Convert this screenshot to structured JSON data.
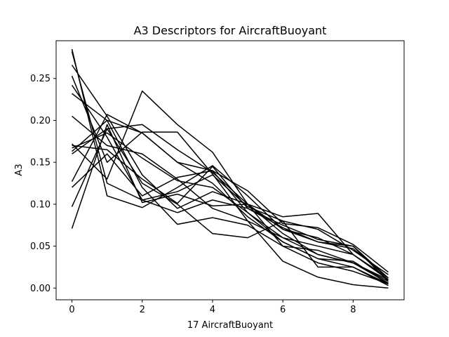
{
  "chart_data": {
    "type": "line",
    "title": "A3 Descriptors for AircraftBuoyant",
    "xlabel": "17 AircraftBuoyant",
    "ylabel": "A3",
    "xlim": [
      -0.45,
      9.45
    ],
    "ylim": [
      -0.014,
      0.295
    ],
    "xticks": [
      0,
      2,
      4,
      6,
      8
    ],
    "yticks": [
      0.0,
      0.05,
      0.1,
      0.15,
      0.2,
      0.25
    ],
    "ytick_labels": [
      "0.00",
      "0.05",
      "0.10",
      "0.15",
      "0.20",
      "0.25"
    ],
    "grid": false,
    "line_color": "#000000",
    "x": [
      0,
      1,
      2,
      3,
      4,
      5,
      6,
      7,
      8,
      9
    ],
    "series": [
      {
        "values": [
          0.285,
          0.11,
          0.096,
          0.12,
          0.146,
          0.11,
          0.07,
          0.055,
          0.047,
          0.012
        ]
      },
      {
        "values": [
          0.282,
          0.125,
          0.105,
          0.115,
          0.135,
          0.097,
          0.08,
          0.07,
          0.045,
          0.016
        ]
      },
      {
        "values": [
          0.266,
          0.205,
          0.135,
          0.095,
          0.115,
          0.1,
          0.085,
          0.089,
          0.04,
          0.012
        ]
      },
      {
        "values": [
          0.253,
          0.15,
          0.186,
          0.186,
          0.136,
          0.08,
          0.032,
          0.013,
          0.004,
          0.0
        ]
      },
      {
        "values": [
          0.242,
          0.18,
          0.105,
          0.09,
          0.105,
          0.095,
          0.072,
          0.055,
          0.05,
          0.008
        ]
      },
      {
        "values": [
          0.232,
          0.2,
          0.185,
          0.15,
          0.125,
          0.085,
          0.055,
          0.035,
          0.032,
          0.005
        ]
      },
      {
        "values": [
          0.205,
          0.17,
          0.16,
          0.13,
          0.095,
          0.08,
          0.06,
          0.05,
          0.04,
          0.01
        ]
      },
      {
        "values": [
          0.172,
          0.13,
          0.235,
          0.195,
          0.162,
          0.1,
          0.07,
          0.06,
          0.04,
          0.01
        ]
      },
      {
        "values": [
          0.17,
          0.165,
          0.13,
          0.101,
          0.145,
          0.095,
          0.075,
          0.058,
          0.05,
          0.012
        ]
      },
      {
        "values": [
          0.167,
          0.185,
          0.155,
          0.128,
          0.12,
          0.09,
          0.055,
          0.035,
          0.025,
          0.005
        ]
      },
      {
        "values": [
          0.163,
          0.2,
          0.12,
          0.076,
          0.084,
          0.075,
          0.05,
          0.045,
          0.03,
          0.01
        ]
      },
      {
        "values": [
          0.16,
          0.19,
          0.195,
          0.165,
          0.138,
          0.1,
          0.05,
          0.03,
          0.02,
          0.005
        ]
      },
      {
        "values": [
          0.127,
          0.207,
          0.185,
          0.15,
          0.14,
          0.09,
          0.06,
          0.04,
          0.03,
          0.008
        ]
      },
      {
        "values": [
          0.12,
          0.16,
          0.11,
          0.132,
          0.14,
          0.116,
          0.077,
          0.072,
          0.052,
          0.019
        ]
      },
      {
        "values": [
          0.097,
          0.19,
          0.125,
          0.1,
          0.065,
          0.06,
          0.08,
          0.025,
          0.025,
          0.003
        ]
      },
      {
        "values": [
          0.071,
          0.195,
          0.102,
          0.112,
          0.098,
          0.1,
          0.065,
          0.04,
          0.03,
          0.006
        ]
      }
    ]
  }
}
